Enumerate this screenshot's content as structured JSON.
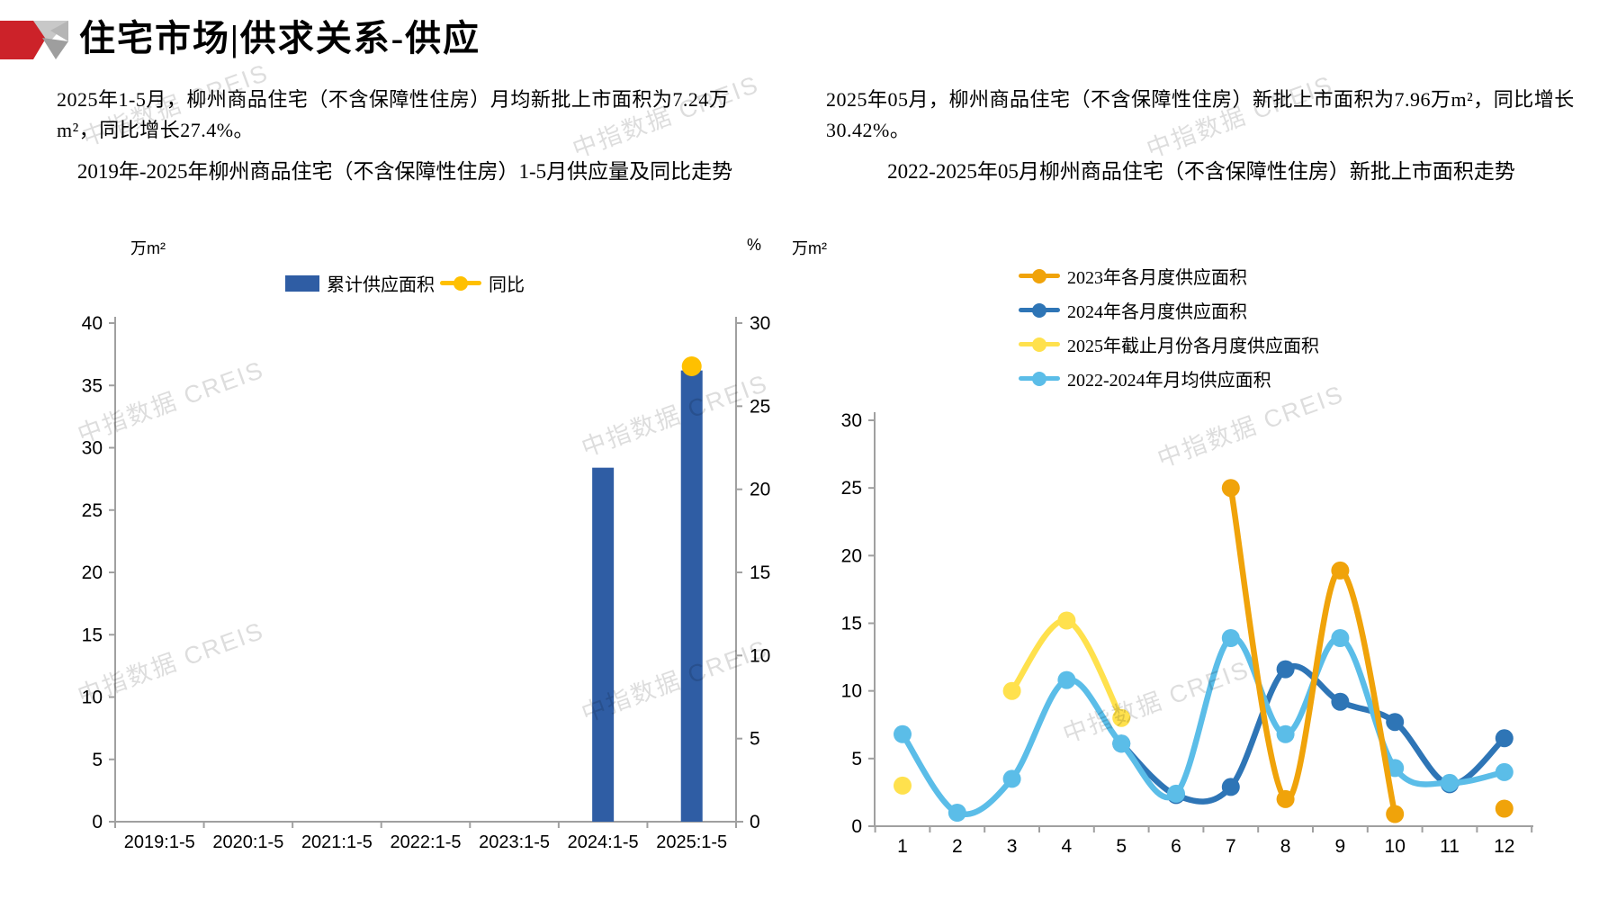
{
  "watermark": "中指数据 CREIS",
  "header": {
    "title": "住宅市场|供求关系-供应"
  },
  "texts": {
    "left_summary": "2025年1-5月，柳州商品住宅（不含保障性住房）月均新批上市面积为7.24万m²，同比增长27.4%。",
    "right_summary": "2025年05月，柳州商品住宅（不含保障性住房）新批上市面积为7.96万m²，同比增长30.42%。"
  },
  "chart_data": [
    {
      "type": "bar",
      "title": "2019年-2025年柳州商品住宅（不含保障性住房）1-5月供应量及同比走势",
      "unit_left": "万m²",
      "unit_right": "%",
      "categories": [
        "2019:1-5",
        "2020:1-5",
        "2021:1-5",
        "2022:1-5",
        "2023:1-5",
        "2024:1-5",
        "2025:1-5"
      ],
      "left_axis": {
        "min": 0,
        "max": 40,
        "step": 5
      },
      "right_axis": {
        "min": 0,
        "max": 30,
        "step": 5
      },
      "grid": false,
      "legend_position": "top",
      "series": [
        {
          "name": "累计供应面积",
          "type": "bar",
          "axis": "left",
          "color": "#2F5DA4",
          "values": [
            null,
            null,
            null,
            null,
            null,
            28.4,
            36.2
          ]
        },
        {
          "name": "同比",
          "type": "line",
          "axis": "right",
          "color": "#FFC000",
          "values": [
            null,
            null,
            null,
            null,
            null,
            null,
            27.4
          ]
        }
      ]
    },
    {
      "type": "line",
      "title": "2022-2025年05月柳州商品住宅（不含保障性住房）新批上市面积走势",
      "unit_left": "万m²",
      "x_labels": [
        "1",
        "2",
        "3",
        "4",
        "5",
        "6",
        "7",
        "8",
        "9",
        "10",
        "11",
        "12"
      ],
      "y_axis": {
        "min": 0,
        "max": 30,
        "step": 5
      },
      "grid": false,
      "legend_position": "top",
      "draw_order": [
        1,
        3,
        0,
        2
      ],
      "series": [
        {
          "name": "2023年各月度供应面积",
          "color": "#F0A30A",
          "values": [
            null,
            null,
            null,
            null,
            null,
            null,
            25,
            2,
            18.9,
            0.9,
            null,
            1.3
          ]
        },
        {
          "name": "2024年各月度供应面积",
          "color": "#2E75B6",
          "values": [
            null,
            null,
            null,
            null,
            6.1,
            2.3,
            2.9,
            11.6,
            9.2,
            7.7,
            3.1,
            6.5
          ]
        },
        {
          "name": "2025年截止月份各月度供应面积",
          "color": "#FFE14D",
          "values": [
            3,
            null,
            10,
            15.2,
            8,
            null,
            null,
            null,
            null,
            null,
            null,
            null
          ]
        },
        {
          "name": "2022-2024年月均供应面积",
          "color": "#5BBDE8",
          "values": [
            6.8,
            1,
            3.5,
            10.8,
            6.1,
            2.4,
            13.9,
            6.8,
            13.9,
            4.3,
            3.2,
            4
          ]
        }
      ]
    }
  ]
}
